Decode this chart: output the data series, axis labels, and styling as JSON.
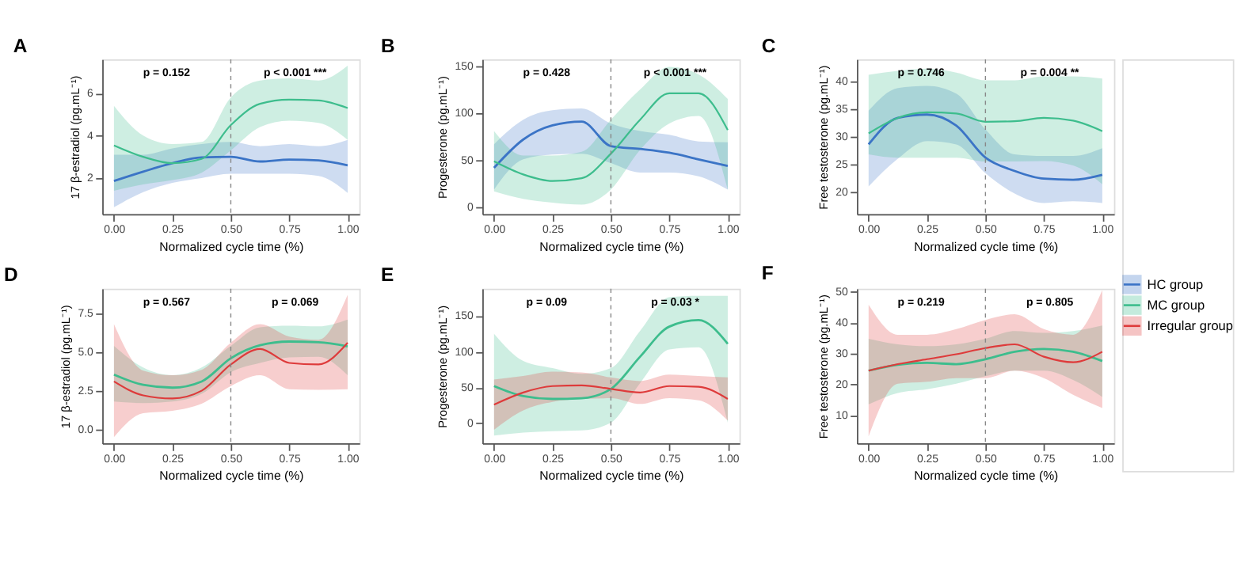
{
  "chart_data": [
    {
      "type": "line",
      "title": "A",
      "xlabel": "Normalized cycle time (%)",
      "ylabel": "17 β-estradiol (pg.mL⁻¹)",
      "x": [
        0,
        0.125,
        0.25,
        0.375,
        0.5,
        0.625,
        0.75,
        0.875,
        1
      ],
      "xlim": [
        -0.05,
        1.05
      ],
      "xticks": [
        {
          "value": 0,
          "label": "0.00"
        },
        {
          "value": 0.25,
          "label": "0.25"
        },
        {
          "value": 0.5,
          "label": "0.50"
        },
        {
          "value": 0.75,
          "label": "0.75"
        },
        {
          "value": 1,
          "label": "1.00"
        }
      ],
      "ylim": [
        0.3,
        7.6
      ],
      "yticks": [
        2,
        4,
        6
      ],
      "legend": "right",
      "grid": false,
      "ref_lines": [
        {
          "axis": "x",
          "value": 0.5,
          "line_style": "dashed",
          "color": "#888888"
        }
      ],
      "annotations": [
        "p = 0.152",
        "p < 0.001 ***"
      ],
      "series": [
        {
          "name": "HC group",
          "color": "#3b74c6",
          "values": [
            1.86,
            2.3,
            2.7,
            2.97,
            3.0,
            2.78,
            2.87,
            2.83,
            2.6
          ],
          "lower": [
            0.62,
            1.33,
            1.77,
            2.0,
            2.2,
            2.2,
            2.2,
            2.1,
            1.3
          ],
          "upper": [
            3.1,
            3.1,
            3.4,
            3.6,
            3.7,
            3.5,
            3.6,
            3.5,
            3.8
          ]
        },
        {
          "name": "MC group",
          "color": "#3dbd8d",
          "values": [
            3.54,
            3.0,
            2.7,
            2.9,
            4.5,
            5.5,
            5.7,
            5.66,
            5.3
          ],
          "lower": [
            1.4,
            1.7,
            1.9,
            2.25,
            3.3,
            4.4,
            4.7,
            4.6,
            3.8
          ],
          "upper": [
            5.4,
            4.0,
            3.6,
            3.7,
            5.8,
            6.6,
            6.7,
            6.6,
            7.3
          ]
        }
      ]
    },
    {
      "type": "line",
      "title": "B",
      "xlabel": "Normalized cycle time (%)",
      "ylabel": "Progesterone (pg.mL⁻¹)",
      "x": [
        0,
        0.125,
        0.25,
        0.375,
        0.5,
        0.625,
        0.75,
        0.875,
        1
      ],
      "xlim": [
        -0.05,
        1.05
      ],
      "xticks": [
        {
          "value": 0,
          "label": "0.00"
        },
        {
          "value": 0.25,
          "label": "0.25"
        },
        {
          "value": 0.5,
          "label": "0.50"
        },
        {
          "value": 0.75,
          "label": "0.75"
        },
        {
          "value": 1,
          "label": "1.00"
        }
      ],
      "ylim": [
        -7,
        157
      ],
      "yticks": [
        0,
        50,
        100,
        150
      ],
      "legend": "right",
      "grid": false,
      "ref_lines": [
        {
          "axis": "x",
          "value": 0.5,
          "line_style": "dashed",
          "color": "#888888"
        }
      ],
      "annotations": [
        "p =  0.428",
        "p < 0.001 ***"
      ],
      "series": [
        {
          "name": "HC group",
          "color": "#3b74c6",
          "values": [
            42,
            72,
            87,
            91,
            65,
            62,
            58,
            51,
            44
          ],
          "lower": [
            19,
            51,
            56,
            57,
            47,
            37,
            37,
            33,
            19
          ],
          "upper": [
            67,
            93,
            103,
            105,
            89,
            81,
            77,
            70,
            69
          ]
        },
        {
          "name": "MC group",
          "color": "#3dbd8d",
          "values": [
            49,
            35,
            28,
            31,
            57,
            93,
            121,
            121,
            82
          ],
          "lower": [
            17,
            9,
            5,
            3,
            19,
            61,
            89,
            97,
            19
          ],
          "upper": [
            81,
            55,
            55,
            59,
            93,
            125,
            149,
            141,
            115
          ]
        }
      ]
    },
    {
      "type": "line",
      "title": "C",
      "xlabel": "Normalized cycle time (%)",
      "ylabel": "Free testosterone (pg.mL⁻¹)",
      "x": [
        0,
        0.125,
        0.25,
        0.375,
        0.5,
        0.625,
        0.75,
        0.875,
        1
      ],
      "xlim": [
        -0.05,
        1.05
      ],
      "xticks": [
        {
          "value": 0,
          "label": "0.00"
        },
        {
          "value": 0.25,
          "label": "0.25"
        },
        {
          "value": 0.5,
          "label": "0.50"
        },
        {
          "value": 0.75,
          "label": "0.75"
        },
        {
          "value": 1,
          "label": "1.00"
        }
      ],
      "ylim": [
        16,
        44
      ],
      "yticks": [
        20,
        25,
        30,
        35,
        40
      ],
      "legend": "right",
      "grid": false,
      "ref_lines": [
        {
          "axis": "x",
          "value": 0.5,
          "line_style": "dashed",
          "color": "#888888"
        }
      ],
      "annotations": [
        "p =  0.746",
        "p =  0.004 **"
      ],
      "series": [
        {
          "name": "HC group",
          "color": "#3b74c6",
          "values": [
            28.6,
            33.4,
            34,
            32,
            26.2,
            23.8,
            22.4,
            22.2,
            23.1
          ],
          "lower": [
            21,
            26,
            29.2,
            28.6,
            23.4,
            19.7,
            18,
            18.3,
            18
          ],
          "upper": [
            34.7,
            38.8,
            39.2,
            37.8,
            31.3,
            26.8,
            26.5,
            26.5,
            27.9
          ]
        },
        {
          "name": "MC group",
          "color": "#3dbd8d",
          "values": [
            30.6,
            33.4,
            34.4,
            34.2,
            32.7,
            32.8,
            33.4,
            32.9,
            31
          ],
          "lower": [
            26.8,
            26.2,
            26.2,
            26.2,
            25.5,
            25.5,
            25.6,
            24.8,
            21.4
          ],
          "upper": [
            41.2,
            41.9,
            42.3,
            41.6,
            40.2,
            40.2,
            40.9,
            40.9,
            40.5
          ]
        }
      ]
    },
    {
      "type": "line",
      "title": "D",
      "xlabel": "Normalized cycle time (%)",
      "ylabel": "17 β-estradiol (pg.mL⁻¹)",
      "x": [
        0,
        0.125,
        0.25,
        0.375,
        0.5,
        0.625,
        0.75,
        0.875,
        1
      ],
      "xlim": [
        -0.05,
        1.05
      ],
      "xticks": [
        {
          "value": 0,
          "label": "0.00"
        },
        {
          "value": 0.25,
          "label": "0.25"
        },
        {
          "value": 0.5,
          "label": "0.50"
        },
        {
          "value": 0.75,
          "label": "0.75"
        },
        {
          "value": 1,
          "label": "1.00"
        }
      ],
      "ylim": [
        -0.9,
        9.1
      ],
      "yticks": [
        {
          "value": 0,
          "label": "0.0"
        },
        2.5,
        {
          "value": 5,
          "label": "5.0"
        },
        7.5
      ],
      "legend": "right",
      "grid": false,
      "ref_lines": [
        {
          "axis": "x",
          "value": 0.5,
          "line_style": "dashed",
          "color": "#888888"
        }
      ],
      "annotations": [
        "p = 0.567",
        "p = 0.069"
      ],
      "series": [
        {
          "name": "MC group",
          "color": "#3dbd8d",
          "values": [
            3.54,
            2.88,
            2.7,
            3.1,
            4.6,
            5.44,
            5.68,
            5.63,
            5.37
          ],
          "lower": [
            1.8,
            1.7,
            1.8,
            2.3,
            3.7,
            4.3,
            4.66,
            4.7,
            3.5
          ],
          "upper": [
            5.4,
            4.0,
            3.5,
            4.0,
            5.4,
            6.6,
            6.7,
            6.66,
            7.1
          ]
        },
        {
          "name": "Irregular group",
          "color": "#de3b3b",
          "values": [
            3.1,
            2.2,
            2.0,
            2.5,
            4.2,
            5.2,
            4.3,
            4.2,
            5.6
          ],
          "lower": [
            -0.5,
            1.05,
            1.2,
            1.66,
            2.8,
            3.5,
            2.6,
            2.56,
            2.6
          ],
          "upper": [
            6.8,
            3.8,
            3.5,
            3.85,
            5.6,
            6.8,
            6.0,
            5.8,
            8.7
          ]
        }
      ]
    },
    {
      "type": "line",
      "title": "E",
      "xlabel": "Normalized cycle time (%)",
      "ylabel": "Progesterone (pg.mL⁻¹)",
      "x": [
        0,
        0.125,
        0.25,
        0.375,
        0.5,
        0.625,
        0.75,
        0.875,
        1
      ],
      "xlim": [
        -0.05,
        1.05
      ],
      "xticks": [
        {
          "value": 0,
          "label": "0.00"
        },
        {
          "value": 0.25,
          "label": "0.25"
        },
        {
          "value": 0.5,
          "label": "0.50"
        },
        {
          "value": 0.75,
          "label": "0.75"
        },
        {
          "value": 1,
          "label": "1.00"
        }
      ],
      "ylim": [
        -28,
        188
      ],
      "yticks": [
        0,
        50,
        100,
        150
      ],
      "legend": "right",
      "grid": false,
      "ref_lines": [
        {
          "axis": "x",
          "value": 0.5,
          "line_style": "dashed",
          "color": "#888888"
        }
      ],
      "annotations": [
        "p = 0.09",
        "p = 0.03 *"
      ],
      "series": [
        {
          "name": "MC group",
          "color": "#3dbd8d",
          "values": [
            52,
            38,
            34,
            35,
            48,
            93,
            135,
            144,
            111
          ],
          "lower": [
            -17,
            -13,
            -11,
            -10,
            1,
            56,
            103,
            106,
            1
          ],
          "upper": [
            125,
            87,
            77,
            69,
            77,
            129,
            176,
            178,
            178
          ]
        },
        {
          "name": "Irregular group",
          "color": "#de3b3b",
          "values": [
            26,
            43,
            52,
            53,
            48,
            43,
            52,
            51,
            34
          ],
          "lower": [
            -9,
            18,
            30,
            34,
            35,
            27,
            35,
            32,
            4
          ],
          "upper": [
            61,
            66,
            72,
            71,
            64,
            59,
            68,
            66,
            64
          ]
        }
      ]
    },
    {
      "type": "line",
      "title": "F",
      "xlabel": "Normalized cycle time (%)",
      "ylabel": "Free testosterone (pg.mL⁻¹)",
      "x": [
        0,
        0.125,
        0.25,
        0.375,
        0.5,
        0.625,
        0.75,
        0.875,
        1
      ],
      "xlim": [
        -0.05,
        1.05
      ],
      "xticks": [
        {
          "value": 0,
          "label": "0.00"
        },
        {
          "value": 0.25,
          "label": "0.25"
        },
        {
          "value": 0.5,
          "label": "0.50"
        },
        {
          "value": 0.75,
          "label": "0.75"
        },
        {
          "value": 1,
          "label": "1.00"
        }
      ],
      "ylim": [
        1,
        51
      ],
      "yticks": [
        10,
        20,
        30,
        40,
        50
      ],
      "legend": "right",
      "grid": false,
      "ref_lines": [
        {
          "axis": "x",
          "value": 0.5,
          "line_style": "dashed",
          "color": "#888888"
        }
      ],
      "annotations": [
        "p = 0.219",
        "p = 0.805"
      ],
      "series": [
        {
          "name": "MC group",
          "color": "#3dbd8d",
          "values": [
            24.5,
            26.4,
            27,
            26.6,
            28.2,
            30.6,
            31.5,
            30.6,
            27.6
          ],
          "lower": [
            13.6,
            17.3,
            18.5,
            20.3,
            22.7,
            24.5,
            24.5,
            21.5,
            16
          ],
          "upper": [
            34.8,
            33,
            32.4,
            33,
            34.8,
            37.3,
            36.7,
            37.3,
            39.1
          ]
        },
        {
          "name": "Irregular group",
          "color": "#de3b3b",
          "values": [
            24.5,
            26.6,
            28.2,
            29.8,
            31.8,
            33,
            29,
            27.2,
            30.6
          ],
          "lower": [
            3.3,
            20.3,
            20.9,
            22.1,
            22.1,
            24.5,
            22.1,
            16.7,
            12.4
          ],
          "upper": [
            45.8,
            36.1,
            36.1,
            37.9,
            40.9,
            42.7,
            37.9,
            36.1,
            50.5
          ]
        }
      ]
    }
  ]
}
